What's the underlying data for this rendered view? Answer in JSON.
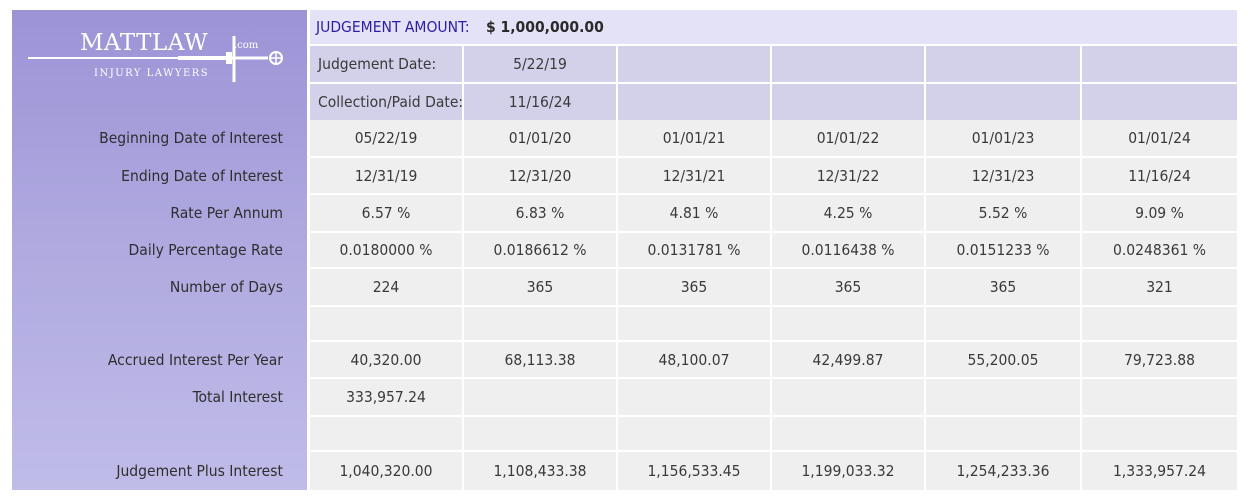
{
  "logo": {
    "name": "MATTLAW",
    "domain": ".com",
    "tagline": "INJURY LAWYERS"
  },
  "header": {
    "judgement_amount_label": "JUDGEMENT AMOUNT:",
    "judgement_amount_value": "$ 1,000,000.00",
    "judgement_date_label": "Judgement Date:",
    "judgement_date_value": "5/22/19",
    "collection_date_label": "Collection/Paid Date:",
    "collection_date_value": "11/16/24"
  },
  "rows": [
    {
      "label": "Beginning Date of Interest",
      "values": [
        "05/22/19",
        "01/01/20",
        "01/01/21",
        "01/01/22",
        "01/01/23",
        "01/01/24"
      ]
    },
    {
      "label": "Ending Date of Interest",
      "values": [
        "12/31/19",
        "12/31/20",
        "12/31/21",
        "12/31/22",
        "12/31/23",
        "11/16/24"
      ]
    },
    {
      "label": "Rate Per Annum",
      "values": [
        "6.57 %",
        "6.83 %",
        "4.81 %",
        "4.25 %",
        "5.52 %",
        "9.09 %"
      ]
    },
    {
      "label": "Daily Percentage Rate",
      "values": [
        "0.0180000 %",
        "0.0186612 %",
        "0.0131781 %",
        "0.0116438 %",
        "0.0151233 %",
        "0.0248361 %"
      ]
    },
    {
      "label": "Number of Days",
      "values": [
        "224",
        "365",
        "365",
        "365",
        "365",
        "321"
      ]
    },
    {
      "label": "",
      "values": [
        "",
        "",
        "",
        "",
        "",
        ""
      ]
    },
    {
      "label": "Accrued Interest Per Year",
      "values": [
        "40,320.00",
        "68,113.38",
        "48,100.07",
        "42,499.87",
        "55,200.05",
        "79,723.88"
      ]
    },
    {
      "label": "Total Interest",
      "values": [
        "333,957.24",
        "",
        "",
        "",
        "",
        ""
      ]
    },
    {
      "label": "",
      "values": [
        "",
        "",
        "",
        "",
        "",
        ""
      ]
    },
    {
      "label": "Judgement Plus Interest",
      "values": [
        "1,040,320.00",
        "1,108,433.38",
        "1,156,533.45",
        "1,199,033.32",
        "1,254,233.36",
        "1,333,957.24"
      ]
    }
  ],
  "colors": {
    "sidebar": "#9c93d6",
    "accent_text": "#2b1fa6",
    "header_band": "#e4e2f6",
    "header_cells": "#d3d0ea",
    "data_cells": "#efefef"
  }
}
